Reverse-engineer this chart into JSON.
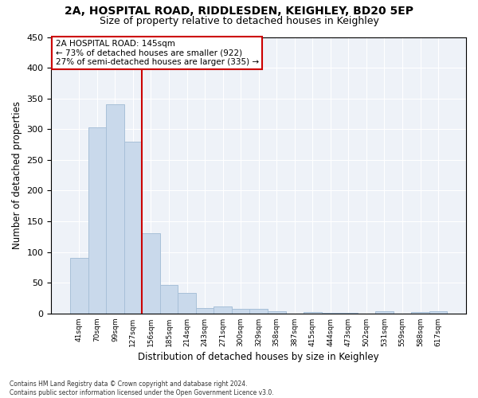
{
  "title1": "2A, HOSPITAL ROAD, RIDDLESDEN, KEIGHLEY, BD20 5EP",
  "title2": "Size of property relative to detached houses in Keighley",
  "xlabel": "Distribution of detached houses by size in Keighley",
  "ylabel": "Number of detached properties",
  "categories": [
    "41sqm",
    "70sqm",
    "99sqm",
    "127sqm",
    "156sqm",
    "185sqm",
    "214sqm",
    "243sqm",
    "271sqm",
    "300sqm",
    "329sqm",
    "358sqm",
    "387sqm",
    "415sqm",
    "444sqm",
    "473sqm",
    "502sqm",
    "531sqm",
    "559sqm",
    "588sqm",
    "617sqm"
  ],
  "values": [
    90,
    303,
    341,
    279,
    131,
    47,
    33,
    9,
    12,
    8,
    8,
    4,
    0,
    2,
    1,
    1,
    0,
    4,
    0,
    3,
    4
  ],
  "bar_color": "#c9d9eb",
  "bar_edge_color": "#a8c0d8",
  "vline_x": 3.5,
  "vline_color": "#cc0000",
  "annotation_text": "2A HOSPITAL ROAD: 145sqm\n← 73% of detached houses are smaller (922)\n27% of semi-detached houses are larger (335) →",
  "annotation_box_color": "#ffffff",
  "annotation_box_edge": "#cc0000",
  "ylim": [
    0,
    450
  ],
  "yticks": [
    0,
    50,
    100,
    150,
    200,
    250,
    300,
    350,
    400,
    450
  ],
  "background_color": "#eef2f8",
  "footer": "Contains HM Land Registry data © Crown copyright and database right 2024.\nContains public sector information licensed under the Open Government Licence v3.0.",
  "title1_fontsize": 10,
  "title2_fontsize": 9,
  "xlabel_fontsize": 8.5,
  "ylabel_fontsize": 8.5
}
